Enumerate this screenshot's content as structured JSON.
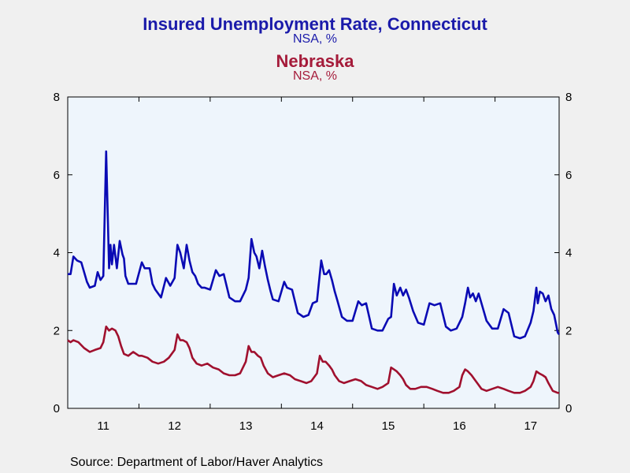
{
  "titles": {
    "series1_title": "Insured Unemployment Rate, Connecticut",
    "series1_units": "NSA, %",
    "series2_title": "Nebraska",
    "series2_units": "NSA, %"
  },
  "source": "Source:  Department of Labor/Haver Analytics",
  "colors": {
    "connecticut": "#0a0ab4",
    "nebraska": "#a0102e",
    "plot_bg": "#eef5fc"
  },
  "chart_data": {
    "type": "line",
    "xlabel": "",
    "ylabel": "",
    "ylim": [
      0,
      8
    ],
    "xlim": [
      2011,
      2017.9
    ],
    "yticks": [
      0,
      2,
      4,
      6,
      8
    ],
    "xticklabels": [
      "11",
      "12",
      "13",
      "14",
      "15",
      "16",
      "17"
    ],
    "x_range_years": [
      2011,
      2017
    ],
    "grid": false,
    "series": [
      {
        "name": "Connecticut",
        "x": [
          2011.0,
          2011.04,
          2011.08,
          2011.13,
          2011.19,
          2011.27,
          2011.31,
          2011.38,
          2011.42,
          2011.46,
          2011.5,
          2011.54,
          2011.58,
          2011.6,
          2011.62,
          2011.65,
          2011.69,
          2011.73,
          2011.77,
          2011.79,
          2011.81,
          2011.85,
          2011.88,
          2011.96,
          2012.04,
          2012.08,
          2012.15,
          2012.19,
          2012.23,
          2012.31,
          2012.38,
          2012.44,
          2012.5,
          2012.54,
          2012.58,
          2012.63,
          2012.67,
          2012.71,
          2012.75,
          2012.79,
          2012.83,
          2012.88,
          2012.92,
          2013.0,
          2013.08,
          2013.13,
          2013.19,
          2013.27,
          2013.35,
          2013.42,
          2013.5,
          2013.54,
          2013.58,
          2013.62,
          2013.65,
          2013.69,
          2013.73,
          2013.77,
          2013.81,
          2013.85,
          2013.88,
          2013.96,
          2014.04,
          2014.08,
          2014.15,
          2014.23,
          2014.31,
          2014.38,
          2014.44,
          2014.5,
          2014.56,
          2014.6,
          2014.63,
          2014.67,
          2014.71,
          2014.75,
          2014.79,
          2014.85,
          2014.92,
          2015.0,
          2015.08,
          2015.13,
          2015.19,
          2015.27,
          2015.35,
          2015.42,
          2015.5,
          2015.54,
          2015.58,
          2015.62,
          2015.67,
          2015.71,
          2015.75,
          2015.79,
          2015.85,
          2015.92,
          2016.0,
          2016.08,
          2016.15,
          2016.23,
          2016.31,
          2016.38,
          2016.46,
          2016.5,
          2016.54,
          2016.58,
          2016.62,
          2016.65,
          2016.69,
          2016.73,
          2016.77,
          2016.81,
          2016.88,
          2016.96,
          2017.04,
          2017.12,
          2017.19,
          2017.27,
          2017.35,
          2017.42,
          2017.5,
          2017.54,
          2017.58,
          2017.6,
          2017.63,
          2017.67,
          2017.71,
          2017.75,
          2017.79,
          2017.83,
          2017.88,
          2017.9
        ],
        "values": [
          3.45,
          3.45,
          3.9,
          3.8,
          3.75,
          3.25,
          3.1,
          3.15,
          3.5,
          3.3,
          3.4,
          6.6,
          3.6,
          4.2,
          3.7,
          4.2,
          3.6,
          4.3,
          3.95,
          3.85,
          3.4,
          3.2,
          3.2,
          3.2,
          3.75,
          3.6,
          3.6,
          3.2,
          3.05,
          2.85,
          3.35,
          3.15,
          3.35,
          4.2,
          4.0,
          3.6,
          4.2,
          3.8,
          3.5,
          3.4,
          3.2,
          3.1,
          3.1,
          3.05,
          3.55,
          3.4,
          3.45,
          2.85,
          2.75,
          2.75,
          3.05,
          3.35,
          4.35,
          4.0,
          3.9,
          3.6,
          4.05,
          3.65,
          3.3,
          3.0,
          2.8,
          2.75,
          3.25,
          3.1,
          3.05,
          2.45,
          2.35,
          2.4,
          2.7,
          2.75,
          3.8,
          3.45,
          3.45,
          3.55,
          3.3,
          3.0,
          2.75,
          2.35,
          2.25,
          2.25,
          2.75,
          2.65,
          2.7,
          2.05,
          2.0,
          2.0,
          2.3,
          2.35,
          3.2,
          2.9,
          3.1,
          2.9,
          3.05,
          2.85,
          2.5,
          2.2,
          2.15,
          2.7,
          2.65,
          2.7,
          2.1,
          2.0,
          2.05,
          2.2,
          2.35,
          2.7,
          3.1,
          2.85,
          2.95,
          2.75,
          2.95,
          2.7,
          2.25,
          2.05,
          2.05,
          2.55,
          2.45,
          1.85,
          1.8,
          1.85,
          2.2,
          2.5,
          3.1,
          2.7,
          3.0,
          2.95,
          2.75,
          2.9,
          2.55,
          2.4,
          1.95,
          1.9
        ]
      },
      {
        "name": "Nebraska",
        "x": [
          2011.0,
          2011.04,
          2011.08,
          2011.15,
          2011.23,
          2011.31,
          2011.38,
          2011.46,
          2011.5,
          2011.54,
          2011.58,
          2011.62,
          2011.67,
          2011.71,
          2011.75,
          2011.79,
          2011.85,
          2011.92,
          2012.0,
          2012.04,
          2012.12,
          2012.19,
          2012.27,
          2012.35,
          2012.42,
          2012.5,
          2012.54,
          2012.58,
          2012.62,
          2012.67,
          2012.71,
          2012.75,
          2012.81,
          2012.88,
          2012.96,
          2013.04,
          2013.12,
          2013.19,
          2013.27,
          2013.35,
          2013.42,
          2013.5,
          2013.54,
          2013.58,
          2013.62,
          2013.67,
          2013.71,
          2013.75,
          2013.81,
          2013.88,
          2013.96,
          2014.04,
          2014.12,
          2014.19,
          2014.27,
          2014.35,
          2014.42,
          2014.5,
          2014.54,
          2014.58,
          2014.62,
          2014.67,
          2014.71,
          2014.75,
          2014.81,
          2014.88,
          2014.96,
          2015.04,
          2015.12,
          2015.19,
          2015.27,
          2015.35,
          2015.42,
          2015.5,
          2015.54,
          2015.58,
          2015.62,
          2015.67,
          2015.71,
          2015.75,
          2015.81,
          2015.88,
          2015.96,
          2016.04,
          2016.12,
          2016.19,
          2016.27,
          2016.35,
          2016.42,
          2016.5,
          2016.54,
          2016.58,
          2016.62,
          2016.67,
          2016.71,
          2016.75,
          2016.81,
          2016.88,
          2016.96,
          2017.04,
          2017.12,
          2017.19,
          2017.27,
          2017.35,
          2017.42,
          2017.5,
          2017.54,
          2017.58,
          2017.62,
          2017.67,
          2017.71,
          2017.75,
          2017.81,
          2017.88,
          2017.9
        ],
        "values": [
          1.75,
          1.7,
          1.75,
          1.7,
          1.55,
          1.45,
          1.5,
          1.55,
          1.7,
          2.1,
          2.0,
          2.05,
          2.0,
          1.85,
          1.6,
          1.4,
          1.35,
          1.45,
          1.35,
          1.35,
          1.3,
          1.2,
          1.15,
          1.2,
          1.3,
          1.5,
          1.9,
          1.75,
          1.75,
          1.7,
          1.55,
          1.3,
          1.15,
          1.1,
          1.15,
          1.05,
          1.0,
          0.9,
          0.85,
          0.85,
          0.9,
          1.2,
          1.6,
          1.45,
          1.45,
          1.35,
          1.3,
          1.1,
          0.9,
          0.8,
          0.85,
          0.9,
          0.85,
          0.75,
          0.7,
          0.65,
          0.7,
          0.9,
          1.35,
          1.2,
          1.2,
          1.1,
          1.0,
          0.85,
          0.7,
          0.65,
          0.7,
          0.75,
          0.7,
          0.6,
          0.55,
          0.5,
          0.55,
          0.65,
          1.05,
          1.0,
          0.95,
          0.85,
          0.75,
          0.6,
          0.5,
          0.5,
          0.55,
          0.55,
          0.5,
          0.45,
          0.4,
          0.4,
          0.45,
          0.55,
          0.85,
          1.0,
          0.95,
          0.85,
          0.75,
          0.65,
          0.5,
          0.45,
          0.5,
          0.55,
          0.5,
          0.45,
          0.4,
          0.4,
          0.45,
          0.55,
          0.7,
          0.95,
          0.9,
          0.85,
          0.8,
          0.65,
          0.45,
          0.4,
          0.4
        ]
      }
    ]
  }
}
